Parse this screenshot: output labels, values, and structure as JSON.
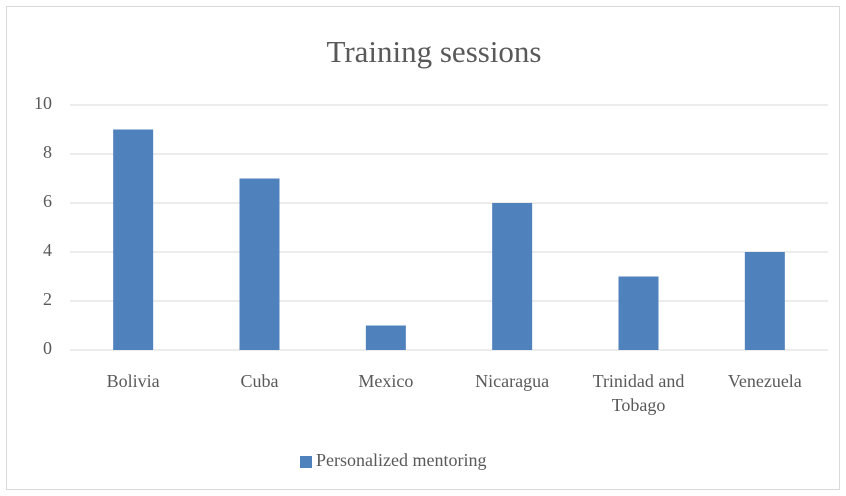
{
  "chart_data": {
    "type": "bar",
    "title": "Training sessions",
    "categories": [
      "Bolivia",
      "Cuba",
      "Mexico",
      "Nicaragua",
      "Trinidad and Tobago",
      "Venezuela"
    ],
    "series": [
      {
        "name": "Personalized mentoring",
        "color": "#4f81bd",
        "values": [
          9,
          7,
          1,
          6,
          3,
          4
        ]
      }
    ],
    "ylim": [
      0,
      10
    ],
    "yticks": [
      0,
      2,
      4,
      6,
      8,
      10
    ],
    "grid": true,
    "legend": "bottom"
  }
}
